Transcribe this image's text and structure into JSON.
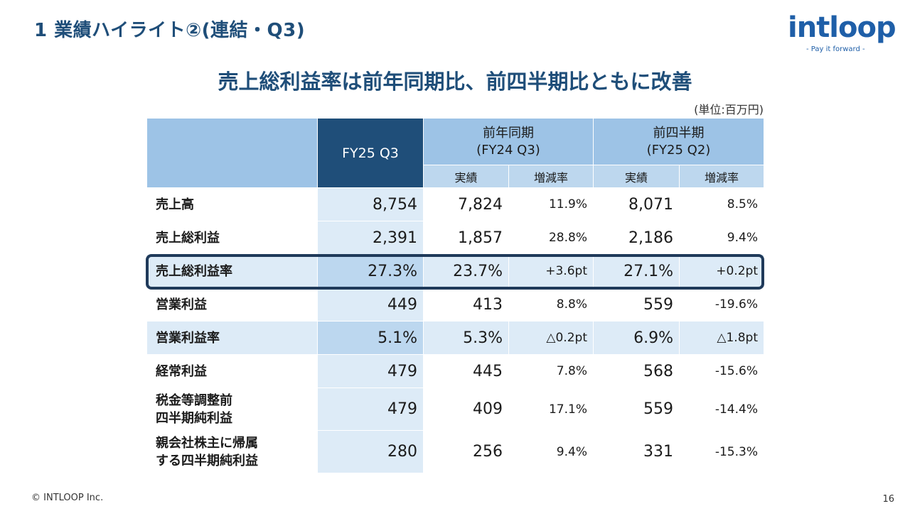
{
  "slide": {
    "title": "1 業績ハイライト②(連結・Q3)",
    "headline": "売上総利益率は前年同期比、前四半期比ともに改善",
    "unit": "(単位:百万円)",
    "footer": "© INTLOOP Inc.",
    "page_number": "16"
  },
  "logo": {
    "word": "intloop",
    "tagline": "- Pay it forward -"
  },
  "table": {
    "header": {
      "current": "FY25 Q3",
      "group_yoy_line1": "前年同期",
      "group_yoy_line2": "(FY24 Q3)",
      "group_qoq_line1": "前四半期",
      "group_qoq_line2": "(FY25 Q2)",
      "actual": "実績",
      "change": "増減率"
    },
    "rows": [
      {
        "label": "売上高",
        "label2": "",
        "cur": "8,754",
        "yoy_val": "7,824",
        "yoy_chg": "11.9%",
        "qoq_val": "8,071",
        "qoq_chg": "8.5%"
      },
      {
        "label": "売上総利益",
        "label2": "",
        "cur": "2,391",
        "yoy_val": "1,857",
        "yoy_chg": "28.8%",
        "qoq_val": "2,186",
        "qoq_chg": "9.4%"
      },
      {
        "label": "売上総利益率",
        "label2": "",
        "cur": "27.3%",
        "yoy_val": "23.7%",
        "yoy_chg": "+3.6pt",
        "qoq_val": "27.1%",
        "qoq_chg": "+0.2pt"
      },
      {
        "label": "営業利益",
        "label2": "",
        "cur": "449",
        "yoy_val": "413",
        "yoy_chg": "8.8%",
        "qoq_val": "559",
        "qoq_chg": "-19.6%"
      },
      {
        "label": "営業利益率",
        "label2": "",
        "cur": "5.1%",
        "yoy_val": "5.3%",
        "yoy_chg": "△0.2pt",
        "qoq_val": "6.9%",
        "qoq_chg": "△1.8pt"
      },
      {
        "label": "経常利益",
        "label2": "",
        "cur": "479",
        "yoy_val": "445",
        "yoy_chg": "7.8%",
        "qoq_val": "568",
        "qoq_chg": "-15.6%"
      },
      {
        "label": "税金等調整前",
        "label2": "四半期純利益",
        "cur": "479",
        "yoy_val": "409",
        "yoy_chg": "17.1%",
        "qoq_val": "559",
        "qoq_chg": "-14.4%"
      },
      {
        "label": "親会社株主に帰属",
        "label2": "する四半期純利益",
        "cur": "280",
        "yoy_val": "256",
        "yoy_chg": "9.4%",
        "qoq_val": "331",
        "qoq_chg": "-15.3%"
      }
    ]
  },
  "colors": {
    "title": "#1f4e79",
    "header_dark": "#1f4e79",
    "header_light": "#9dc3e6",
    "row_shade": "#ddebf7",
    "highlight_border": "#1f3a5a",
    "logo": "#1f5fa8"
  }
}
